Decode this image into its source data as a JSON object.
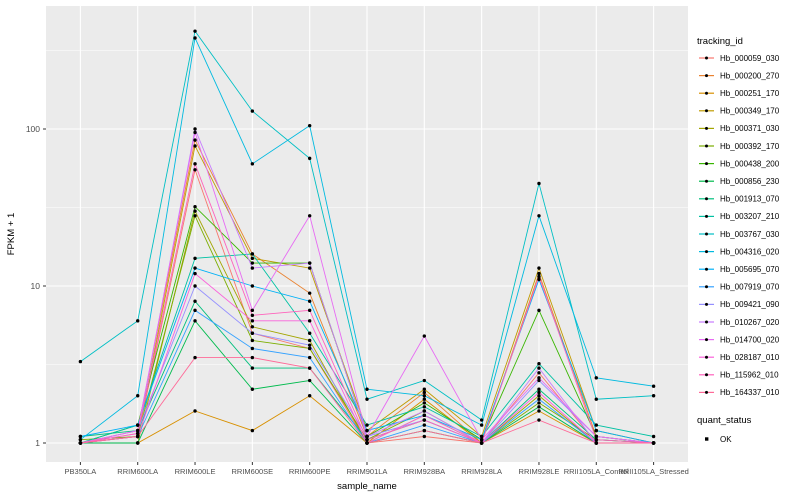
{
  "chart_data": {
    "type": "line",
    "title": "",
    "xlabel": "sample_name",
    "ylabel": "FPKM + 1",
    "y_scale": "log10",
    "y_major_ticks": [
      1,
      10,
      100
    ],
    "y_tick_labels": [
      "1",
      "10",
      "100"
    ],
    "y_minor_ticks": [
      3.1623,
      31.623,
      316.23
    ],
    "ylim": [
      0.757,
      607
    ],
    "grid": "on",
    "legend_position": "right",
    "panel_background": "#EBEBEB",
    "gridline_color": "#FFFFFF",
    "marker_color": "#000000",
    "tick_label_color": "#4D4D4D",
    "axis_title_color": "#000000",
    "categories": [
      "PB350LA",
      "RRIM600LA",
      "RRIM600LE",
      "RRIM600SE",
      "RRIM600PE",
      "RRIM901LA",
      "RRIM928BA",
      "RRIM928LA",
      "RRIM928LE",
      "RRII105LA_Control",
      "RRII105LA_Stressed"
    ],
    "series": [
      {
        "name": "Hb_000059_030",
        "color": "#F8766D",
        "values": [
          1,
          1.1,
          55,
          5,
          4,
          1,
          1.1,
          1,
          2.8,
          1,
          1
        ]
      },
      {
        "name": "Hb_000200_270",
        "color": "#EA8331",
        "values": [
          1,
          1.2,
          85,
          16,
          9,
          1.1,
          2.1,
          1,
          12,
          1.1,
          1
        ]
      },
      {
        "name": "Hb_000251_170",
        "color": "#D89000",
        "values": [
          1,
          1,
          1.6,
          1.2,
          2,
          1,
          1.9,
          1,
          1.6,
          1,
          1
        ]
      },
      {
        "name": "Hb_000349_170",
        "color": "#C09B00",
        "values": [
          1,
          1.1,
          78,
          15,
          13,
          1.2,
          2.2,
          1.1,
          13,
          1.2,
          1
        ]
      },
      {
        "name": "Hb_000371_030",
        "color": "#A3A500",
        "values": [
          1,
          1,
          30,
          5.5,
          4.5,
          1,
          1.5,
          1,
          2,
          1,
          1
        ]
      },
      {
        "name": "Hb_000392_170",
        "color": "#7CAE00",
        "values": [
          1.05,
          1.1,
          28,
          4.5,
          4,
          1.05,
          1.6,
          1,
          1.8,
          1.05,
          1
        ]
      },
      {
        "name": "Hb_000438_200",
        "color": "#39B600",
        "values": [
          1,
          1.3,
          32,
          14,
          14,
          1.1,
          1.8,
          1.05,
          7,
          1.1,
          1
        ]
      },
      {
        "name": "Hb_000856_230",
        "color": "#00BB4E",
        "values": [
          1,
          1,
          6,
          2.2,
          2.5,
          1,
          1.2,
          1,
          1.7,
          1,
          1
        ]
      },
      {
        "name": "Hb_001913_070",
        "color": "#00BF7D",
        "values": [
          1.1,
          1.2,
          8,
          3,
          3,
          1.05,
          1.4,
          1,
          2.2,
          1.05,
          1
        ]
      },
      {
        "name": "Hb_003207_210",
        "color": "#00C1A3",
        "values": [
          1,
          1.3,
          15,
          16,
          5,
          1.3,
          1.7,
          1.1,
          3.2,
          1.3,
          1.1
        ]
      },
      {
        "name": "Hb_003767_030",
        "color": "#00BFC4",
        "values": [
          3.3,
          6,
          420,
          130,
          65,
          1.9,
          2.5,
          1.4,
          45,
          1.9,
          2.0
        ]
      },
      {
        "name": "Hb_004316_020",
        "color": "#00BAE0",
        "values": [
          1.05,
          2,
          380,
          60,
          105,
          2.2,
          2.0,
          1.3,
          28,
          2.6,
          2.3
        ]
      },
      {
        "name": "Hb_005695_070",
        "color": "#00B0F6",
        "values": [
          1.1,
          1.3,
          13,
          10,
          8,
          1.2,
          1.5,
          1.05,
          11,
          1.2,
          1
        ]
      },
      {
        "name": "Hb_007919_070",
        "color": "#35A2FF",
        "values": [
          1,
          1.1,
          7,
          4,
          3.5,
          1,
          1.3,
          1,
          1.9,
          1,
          1
        ]
      },
      {
        "name": "Hb_009421_090",
        "color": "#9590FF",
        "values": [
          1,
          1.2,
          10,
          5,
          4.2,
          1.1,
          1.4,
          1,
          2.5,
          1.1,
          1
        ]
      },
      {
        "name": "Hb_010267_020",
        "color": "#C77CFF",
        "values": [
          1,
          1.15,
          100,
          13,
          14,
          1.1,
          1.6,
          1,
          3,
          1,
          1
        ]
      },
      {
        "name": "Hb_014700_020",
        "color": "#E76BF3",
        "values": [
          1,
          1.2,
          95,
          7,
          28,
          1.1,
          4.8,
          1.05,
          2.6,
          1.1,
          1
        ]
      },
      {
        "name": "Hb_028187_010",
        "color": "#FA62DB",
        "values": [
          1,
          1.1,
          12,
          6,
          6,
          1,
          1.5,
          1,
          2.1,
          1,
          1
        ]
      },
      {
        "name": "Hb_115962_010",
        "color": "#FF62BC",
        "values": [
          1,
          1.15,
          60,
          6.5,
          7,
          1.05,
          1.4,
          1,
          11.5,
          1.05,
          1
        ]
      },
      {
        "name": "Hb_164337_010",
        "color": "#FF6A98",
        "values": [
          1,
          1.1,
          3.5,
          3.5,
          3,
          1,
          1.2,
          1,
          1.4,
          1,
          1
        ]
      }
    ],
    "legend": {
      "series_title": "tracking_id",
      "status_title": "quant_status",
      "status_items": [
        {
          "label": "OK",
          "marker": "point",
          "color": "#000000"
        }
      ]
    }
  }
}
